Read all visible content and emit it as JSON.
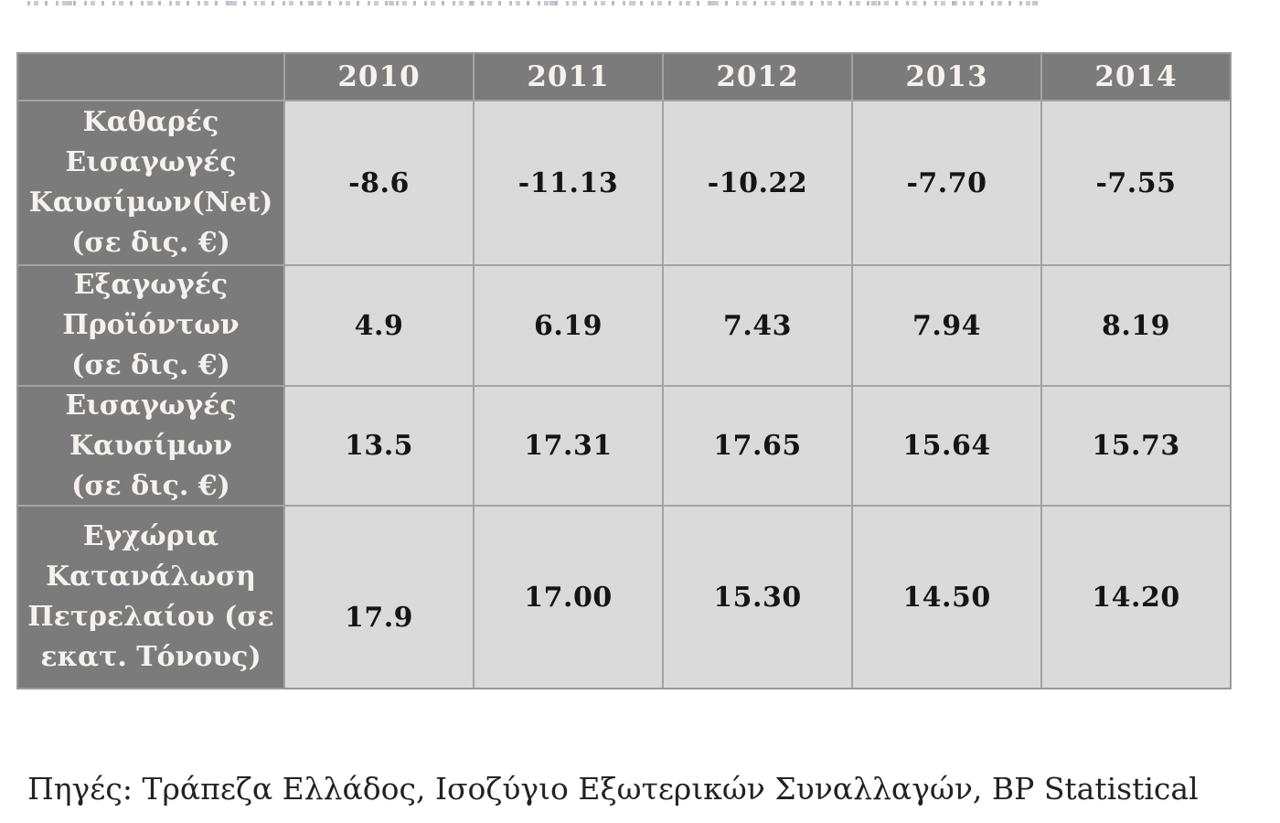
{
  "colors": {
    "header_bg": "#7b7b7b",
    "header_text": "#f5f2ee",
    "cell_bg": "#dadada",
    "cell_text": "#151515",
    "grid_line": "#a3a3a3",
    "page_bg": "#ffffff"
  },
  "table": {
    "corner_label": "",
    "years": [
      "2010",
      "2011",
      "2012",
      "2013",
      "2014"
    ],
    "rows": [
      {
        "label_lines": [
          "Καθαρές",
          "Εισαγωγές",
          "Καυσίμων(Net)",
          "(σε δις. €)"
        ],
        "values": [
          "-8.6",
          "-11.13",
          "-10.22",
          "-7.70",
          "-7.55"
        ]
      },
      {
        "label_lines": [
          "Εξαγωγές",
          "Προϊόντων",
          "(σε δις. €)"
        ],
        "values": [
          "4.9",
          "6.19",
          "7.43",
          "7.94",
          "8.19"
        ]
      },
      {
        "label_lines": [
          "Εισαγωγές",
          "Καυσίμων",
          "(σε δις. €)"
        ],
        "values": [
          "13.5",
          "17.31",
          "17.65",
          "15.64",
          "15.73"
        ]
      },
      {
        "label_lines": [
          "Εγχώρια",
          "Κατανάλωση",
          "Πετρελαίου (σε",
          "εκατ. Τόνους)"
        ],
        "values": [
          "17.9",
          "17.00",
          "15.30",
          "14.50",
          "14.20"
        ]
      }
    ]
  },
  "source_note": "Πηγές: Τράπεζα Ελλάδος, Ισοζύγιο Εξωτερικών Συναλλαγών, BP Statistical",
  "chart_data": {
    "type": "table",
    "title": "",
    "columns": [
      "2010",
      "2011",
      "2012",
      "2013",
      "2014"
    ],
    "rows": [
      {
        "label": "Καθαρές Εισαγωγές Καυσίμων(Net) (σε δις. €)",
        "values": [
          -8.6,
          -11.13,
          -10.22,
          -7.7,
          -7.55
        ]
      },
      {
        "label": "Εξαγωγές Προϊόντων (σε δις. €)",
        "values": [
          4.9,
          6.19,
          7.43,
          7.94,
          8.19
        ]
      },
      {
        "label": "Εισαγωγές Καυσίμων (σε δις. €)",
        "values": [
          13.5,
          17.31,
          17.65,
          15.64,
          15.73
        ]
      },
      {
        "label": "Εγχώρια Κατανάλωση Πετρελαίου (σε εκατ. Τόνους)",
        "values": [
          17.9,
          17.0,
          15.3,
          14.5,
          14.2
        ]
      }
    ],
    "source": "Πηγές: Τράπεζα Ελλάδος, Ισοζύγιο Εξωτερικών Συναλλαγών, BP Statistical"
  }
}
